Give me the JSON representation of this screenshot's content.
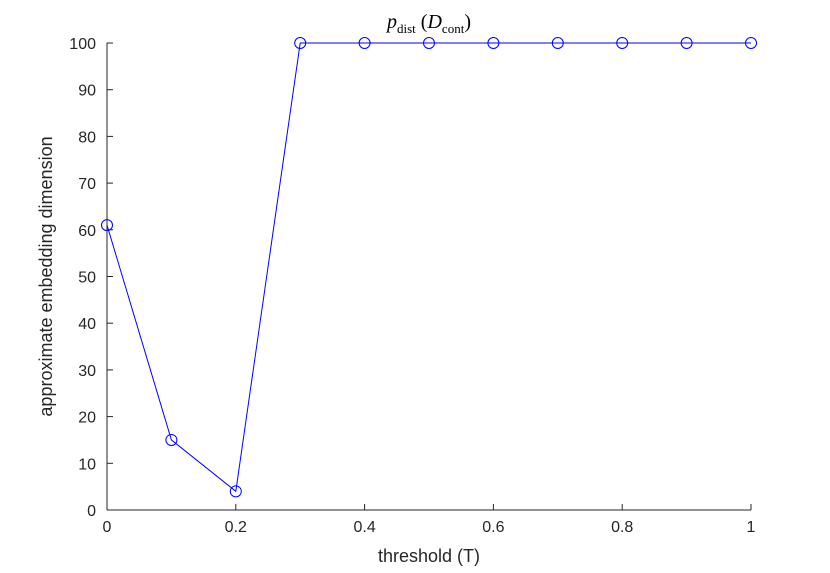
{
  "chart_data": {
    "type": "line",
    "title": {
      "symbol": "p",
      "symbol_subscript": "dist",
      "arg_symbol": "D",
      "arg_subscript": "cont"
    },
    "xlabel": "threshold (T)",
    "ylabel": "approximate embedding dimension",
    "xlim": [
      0,
      1
    ],
    "ylim": [
      0,
      100
    ],
    "xticks": [
      0,
      0.2,
      0.4,
      0.6,
      0.8,
      1
    ],
    "xtick_labels": [
      "0",
      "0.2",
      "0.4",
      "0.6",
      "0.8",
      "1"
    ],
    "yticks": [
      0,
      10,
      20,
      30,
      40,
      50,
      60,
      70,
      80,
      90,
      100
    ],
    "ytick_labels": [
      "0",
      "10",
      "20",
      "30",
      "40",
      "50",
      "60",
      "70",
      "80",
      "90",
      "100"
    ],
    "grid": false,
    "legend": "none",
    "series": [
      {
        "x": [
          0,
          0.1,
          0.2,
          0.3,
          0.4,
          0.5,
          0.6,
          0.7,
          0.8,
          0.9,
          1.0
        ],
        "y": [
          61,
          15,
          4,
          100,
          100,
          100,
          100,
          100,
          100,
          100,
          100
        ],
        "color": "#0000ff",
        "marker": "circle-open"
      }
    ]
  }
}
